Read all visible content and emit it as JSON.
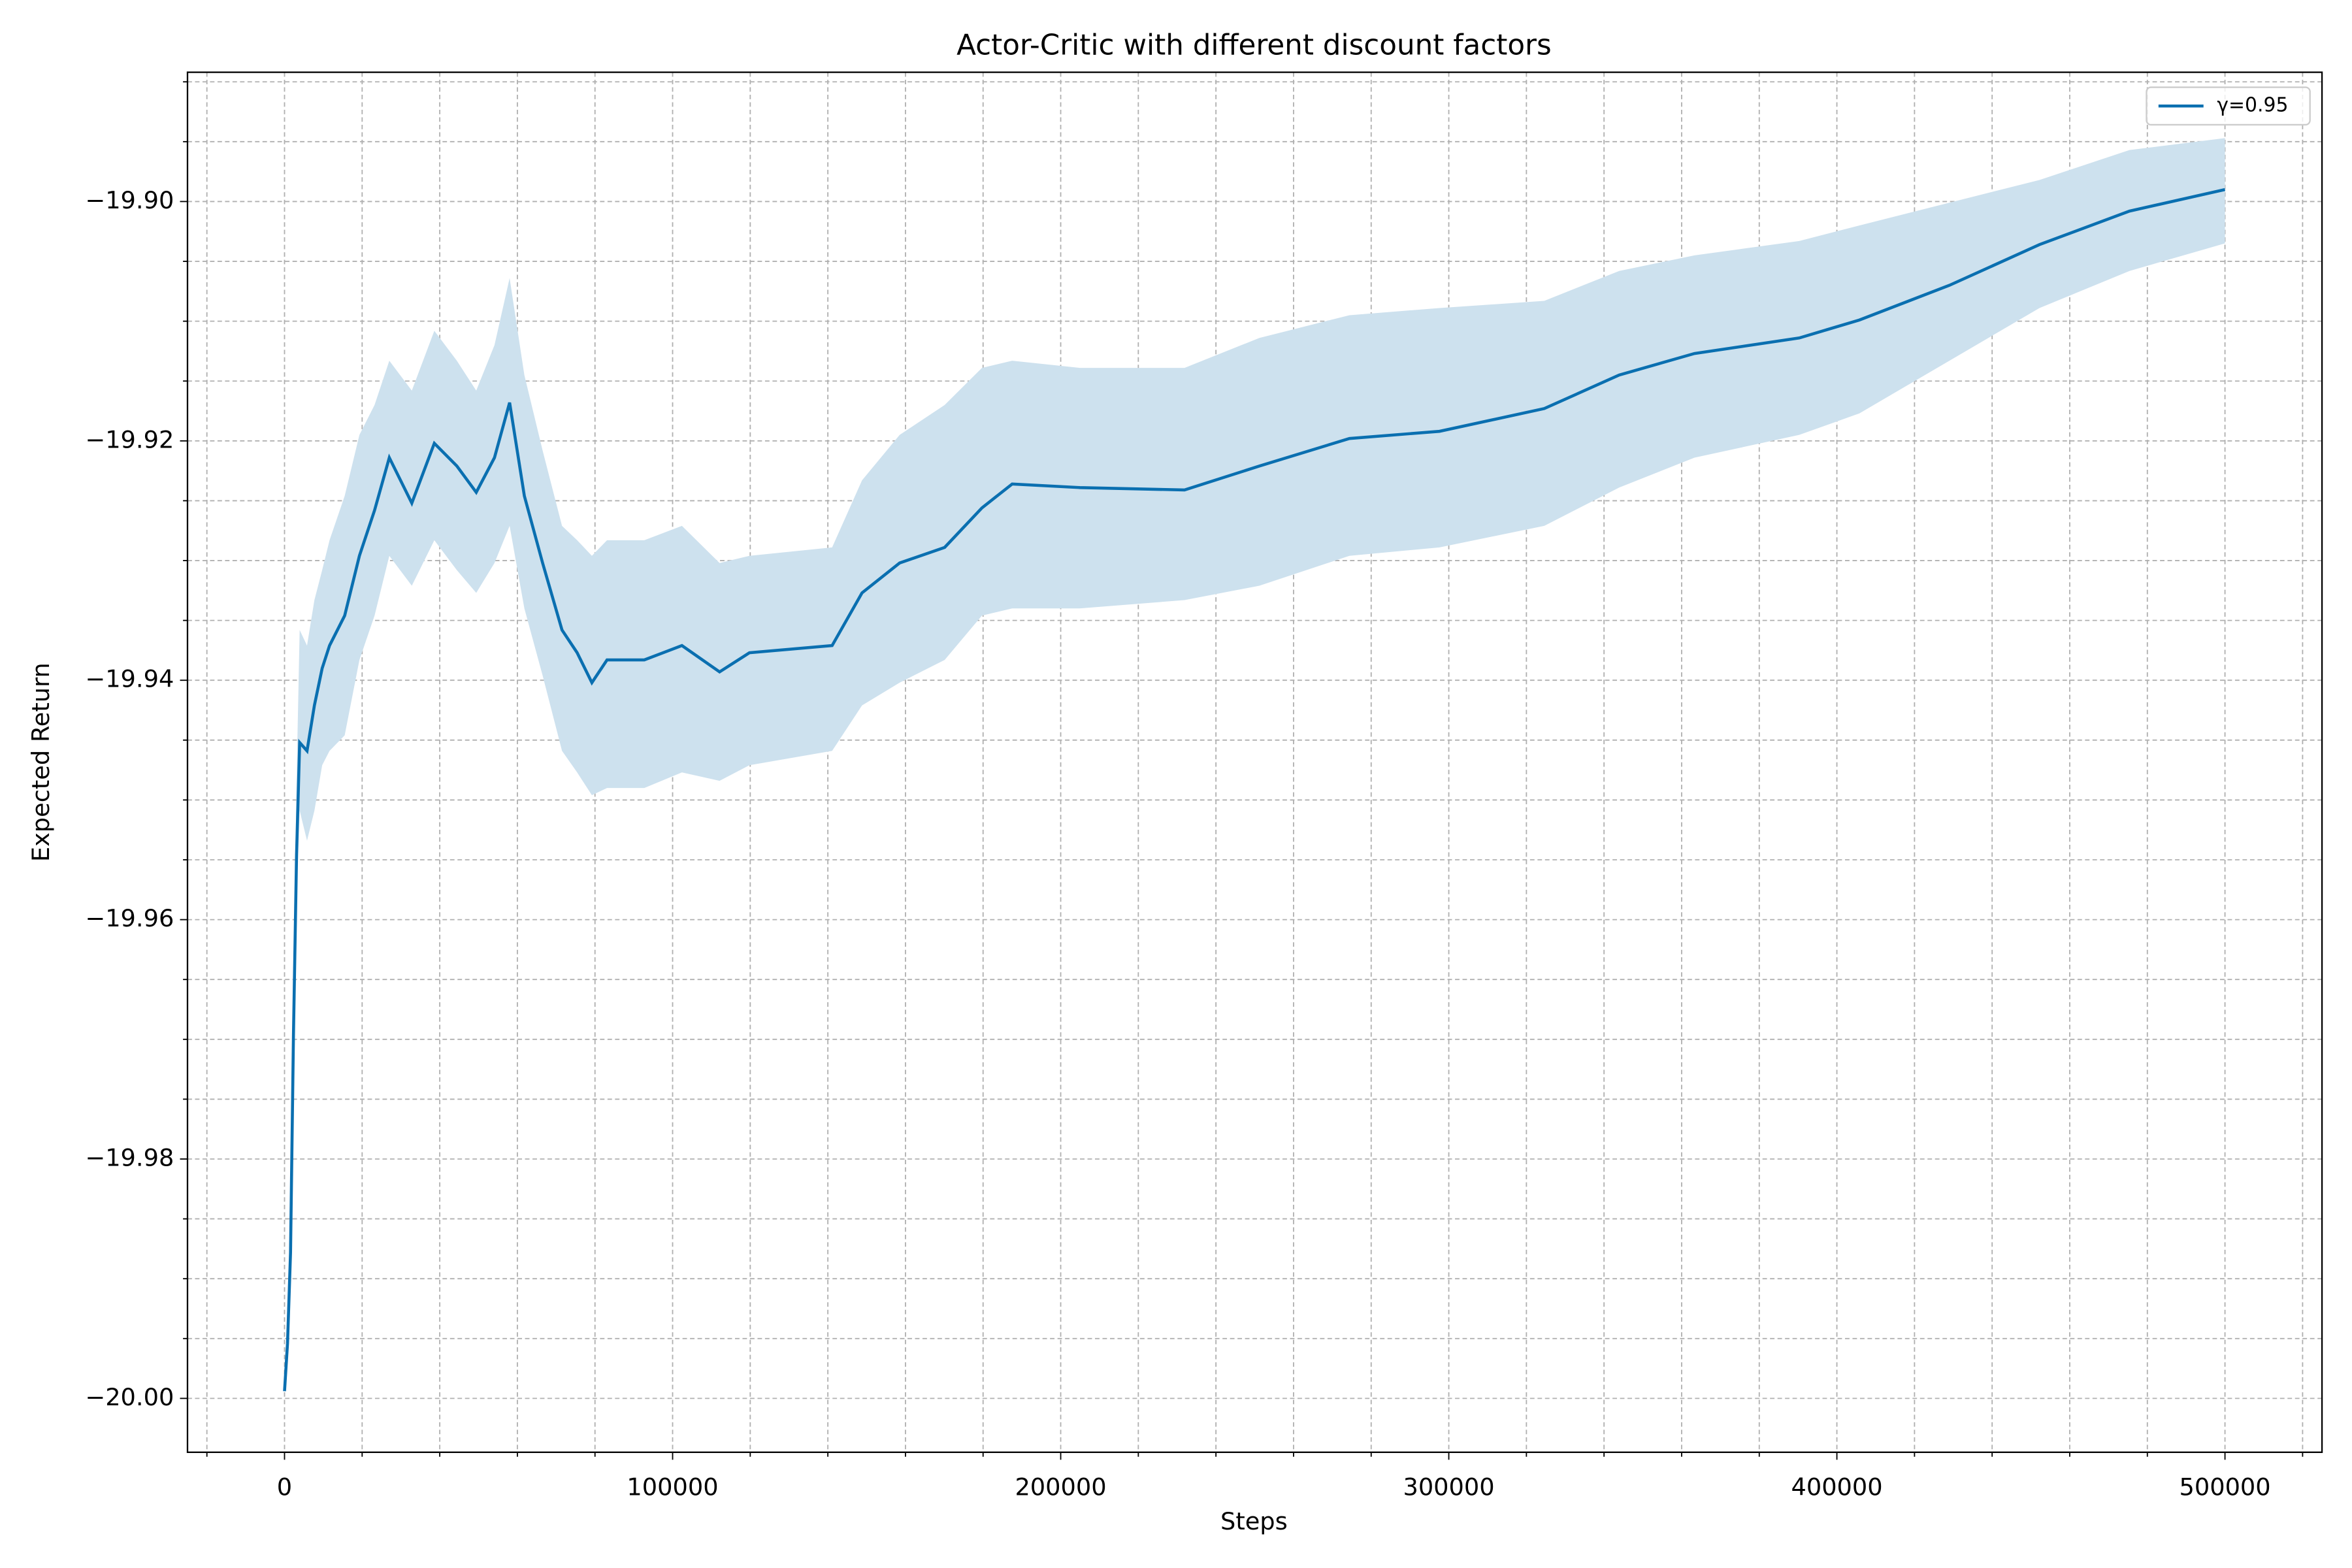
{
  "chart_data": {
    "type": "line",
    "title": "Actor-Critic with different discount factors",
    "x_label": "Steps",
    "y_label": "Expected Return",
    "x": [
      0,
      770,
      1550,
      2300,
      3100,
      3900,
      5800,
      7700,
      9700,
      11600,
      15500,
      19300,
      23200,
      27000,
      32800,
      38600,
      44400,
      49400,
      54100,
      58000,
      61800,
      66500,
      71500,
      75400,
      79200,
      83100,
      92700,
      102400,
      112100,
      119800,
      141100,
      148800,
      158500,
      170100,
      179700,
      187500,
      204900,
      231900,
      251200,
      274400,
      297600,
      324600,
      343900,
      363300,
      390300,
      405800,
      429000,
      452200,
      475400,
      500000
    ],
    "series": [
      {
        "name": "γ=0.95",
        "color": "#0a6fb0",
        "band_color": "#cde1ee",
        "values": [
          -19.9994,
          -19.9954,
          -19.9878,
          -19.9697,
          -19.9546,
          -19.9452,
          -19.9459,
          -19.9421,
          -19.939,
          -19.9371,
          -19.9346,
          -19.9296,
          -19.9258,
          -19.9214,
          -19.9252,
          -19.9202,
          -19.9221,
          -19.9243,
          -19.9214,
          -19.9168,
          -19.9246,
          -19.9302,
          -19.9358,
          -19.9377,
          -19.9402,
          -19.9383,
          -19.9383,
          -19.9371,
          -19.9393,
          -19.9377,
          -19.9371,
          -19.9327,
          -19.9302,
          -19.9289,
          -19.9256,
          -19.9236,
          -19.9239,
          -19.9241,
          -19.9221,
          -19.9198,
          -19.9192,
          -19.9173,
          -19.9145,
          -19.9127,
          -19.9114,
          -19.9099,
          -19.907,
          -19.9036,
          -19.9008,
          -19.899
        ],
        "lower": [
          -19.9994,
          -19.9954,
          -19.9897,
          -19.9734,
          -19.9584,
          -19.9509,
          -19.9534,
          -19.9509,
          -19.9471,
          -19.9459,
          -19.9446,
          -19.9383,
          -19.9346,
          -19.9296,
          -19.9321,
          -19.9283,
          -19.9308,
          -19.9327,
          -19.9302,
          -19.9271,
          -19.934,
          -19.9396,
          -19.9459,
          -19.9477,
          -19.9496,
          -19.949,
          -19.949,
          -19.9477,
          -19.9484,
          -19.9471,
          -19.9459,
          -19.9421,
          -19.9402,
          -19.9383,
          -19.9346,
          -19.934,
          -19.934,
          -19.9333,
          -19.9321,
          -19.9296,
          -19.9289,
          -19.9271,
          -19.9239,
          -19.9214,
          -19.9195,
          -19.9177,
          -19.9133,
          -19.9089,
          -19.9058,
          -19.9035
        ],
        "upper": [
          -19.9994,
          -19.9954,
          -19.986,
          -19.9647,
          -19.9484,
          -19.9358,
          -19.9371,
          -19.9333,
          -19.9308,
          -19.9283,
          -19.9246,
          -19.9195,
          -19.917,
          -19.9133,
          -19.9158,
          -19.9108,
          -19.9133,
          -19.9158,
          -19.912,
          -19.9064,
          -19.9145,
          -19.9208,
          -19.9271,
          -19.9283,
          -19.9296,
          -19.9283,
          -19.9283,
          -19.9271,
          -19.9302,
          -19.9296,
          -19.9289,
          -19.9233,
          -19.9195,
          -19.917,
          -19.9139,
          -19.9133,
          -19.9139,
          -19.9139,
          -19.9114,
          -19.9095,
          -19.9089,
          -19.9083,
          -19.9058,
          -19.9045,
          -19.9033,
          -19.902,
          -19.9001,
          -19.8982,
          -19.8957,
          -19.8947
        ]
      }
    ],
    "xlim": [
      -25000,
      525000
    ],
    "ylim": [
      -20.0045,
      -19.8892
    ],
    "xticks": [
      0,
      100000,
      200000,
      300000,
      400000,
      500000
    ],
    "yticks": [
      {
        "value": -20.0,
        "label": "−20.00"
      },
      {
        "value": -19.98,
        "label": "−19.98"
      },
      {
        "value": -19.96,
        "label": "−19.96"
      },
      {
        "value": -19.94,
        "label": "−19.94"
      },
      {
        "value": -19.92,
        "label": "−19.92"
      },
      {
        "value": -19.9,
        "label": "−19.90"
      }
    ],
    "xticks_minor": [
      -20000,
      20000,
      40000,
      60000,
      80000,
      120000,
      140000,
      160000,
      180000,
      220000,
      240000,
      260000,
      280000,
      320000,
      340000,
      360000,
      380000,
      420000,
      440000,
      460000,
      480000,
      520000
    ],
    "yticks_minor": [
      -19.995,
      -19.99,
      -19.985,
      -19.975,
      -19.97,
      -19.965,
      -19.955,
      -19.95,
      -19.945,
      -19.935,
      -19.93,
      -19.925,
      -19.915,
      -19.91,
      -19.905,
      -19.895,
      -19.89
    ],
    "grid": true,
    "legend": "upper right"
  }
}
